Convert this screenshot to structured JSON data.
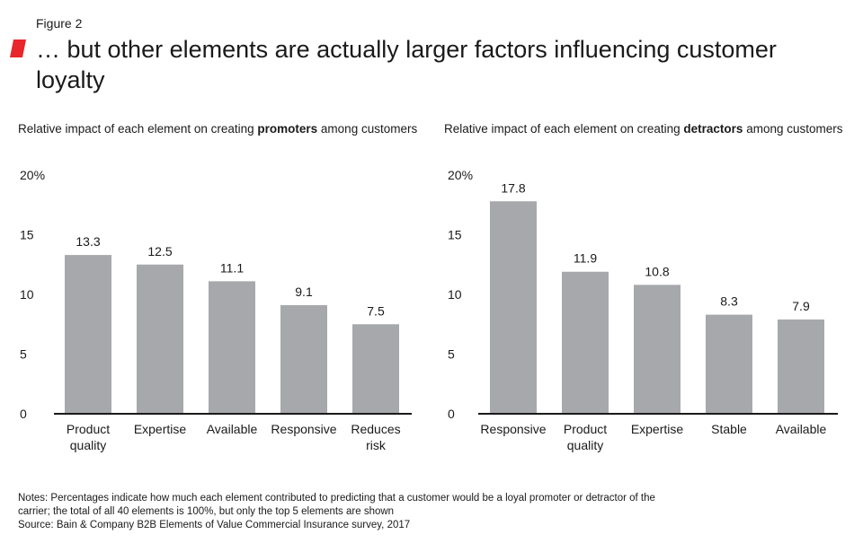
{
  "figure_label": "Figure 2",
  "title": "… but other elements are actually larger factors influencing customer loyalty",
  "colors": {
    "accent": "#e8262b",
    "bar": "#a7a8ab",
    "axis": "#1a1a1a"
  },
  "chart_data": [
    {
      "type": "bar",
      "subtitle": {
        "before": "Relative impact of each element on creating ",
        "bold": "promoters",
        "after": " among customers"
      },
      "categories": [
        [
          "Product",
          "quality"
        ],
        [
          "Expertise"
        ],
        [
          "Available"
        ],
        [
          "Responsive"
        ],
        [
          "Reduces",
          "risk"
        ]
      ],
      "values": [
        13.3,
        12.5,
        11.1,
        9.1,
        7.5
      ],
      "value_labels": [
        "13.3",
        "12.5",
        "11.1",
        "9.1",
        "7.5"
      ],
      "yticks": [
        "0",
        "5",
        "10",
        "15",
        "20%"
      ],
      "ytick_values": [
        0,
        5,
        10,
        15,
        20
      ],
      "ylim": [
        0,
        20
      ]
    },
    {
      "type": "bar",
      "subtitle": {
        "before": "Relative impact of each element on creating ",
        "bold": "detractors",
        "after": " among customers"
      },
      "categories": [
        [
          "Responsive"
        ],
        [
          "Product",
          "quality"
        ],
        [
          "Expertise"
        ],
        [
          "Stable"
        ],
        [
          "Available"
        ]
      ],
      "values": [
        17.8,
        11.9,
        10.8,
        8.3,
        7.9
      ],
      "value_labels": [
        "17.8",
        "11.9",
        "10.8",
        "8.3",
        "7.9"
      ],
      "yticks": [
        "0",
        "5",
        "10",
        "15",
        "20%"
      ],
      "ytick_values": [
        0,
        5,
        10,
        15,
        20
      ],
      "ylim": [
        0,
        20
      ]
    }
  ],
  "notes": {
    "line1": "Notes: Percentages indicate how much each element contributed to predicting that a customer would be a loyal promoter or detractor of the",
    "line2": "carrier; the total of all 40 elements is 100%, but only the top 5 elements are shown",
    "source": "Source: Bain & Company B2B Elements of Value Commercial Insurance survey, 2017"
  }
}
